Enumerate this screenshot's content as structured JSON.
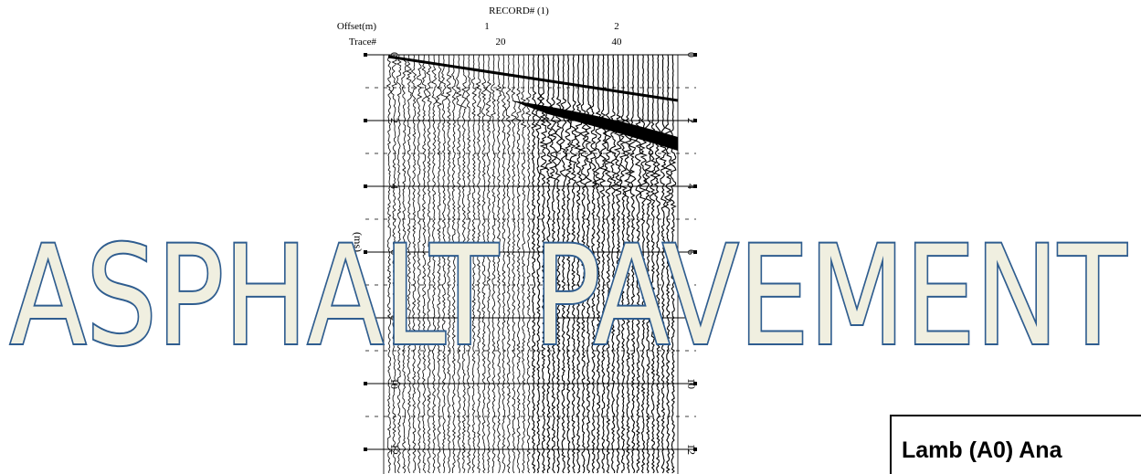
{
  "record": {
    "title": "RECORD# (1)",
    "offset_label": "Offset(m)",
    "offset_ticks": [
      "1",
      "2"
    ],
    "trace_label": "Trace#",
    "trace_ticks": [
      "20",
      "40"
    ],
    "time_ticks": [
      "0",
      "2",
      "4",
      "6",
      "8",
      "10",
      "12"
    ],
    "time_axis_label": "(ms)"
  },
  "overlay_title": "ASPHALT PAVEMENT",
  "box_label": "Lamb (A0) Ana"
}
